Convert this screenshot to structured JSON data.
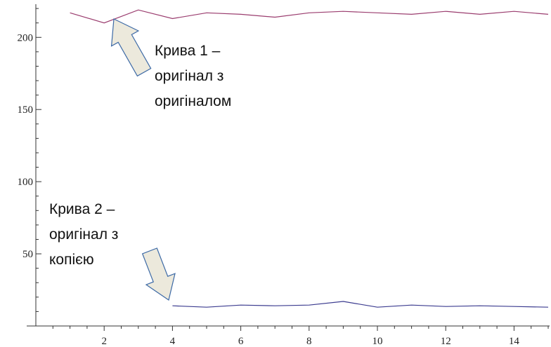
{
  "chart_data": {
    "type": "line",
    "title": "",
    "xlabel": "",
    "ylabel": "",
    "xlim": [
      0,
      15
    ],
    "ylim": [
      0,
      222
    ],
    "grid": false,
    "legend": "none",
    "x_ticks": [
      2,
      4,
      6,
      8,
      10,
      12,
      14
    ],
    "y_ticks": [
      50,
      100,
      150,
      200
    ],
    "series": [
      {
        "color": "#9a3c6e",
        "x": [
          1,
          2,
          3,
          4,
          5,
          6,
          7,
          8,
          9,
          10,
          11,
          12,
          13,
          14,
          15
        ],
        "y": [
          217,
          210,
          219,
          213,
          217,
          216,
          214,
          217,
          218,
          217,
          216,
          218,
          216,
          218,
          216
        ]
      },
      {
        "color": "#3b3b8f",
        "x": [
          4,
          5,
          6,
          7,
          8,
          9,
          10,
          11,
          12,
          13,
          14,
          15
        ],
        "y": [
          14,
          13,
          14.5,
          14,
          14.5,
          17,
          13,
          14.5,
          13.5,
          14,
          13.5,
          13
        ]
      }
    ],
    "annotations": [
      {
        "lines": [
          "Крива 1 –",
          "оригінал з",
          "оригіналом"
        ],
        "arrow_to": [
          2.4,
          212
        ]
      },
      {
        "lines": [
          "Крива 2 –",
          "оригінал з",
          "копією"
        ],
        "arrow_to": [
          3.7,
          15
        ]
      }
    ]
  },
  "colors": {
    "axis": "#333333",
    "arrow_fill": "#ece9dc",
    "arrow_stroke": "#3d6aa6"
  }
}
